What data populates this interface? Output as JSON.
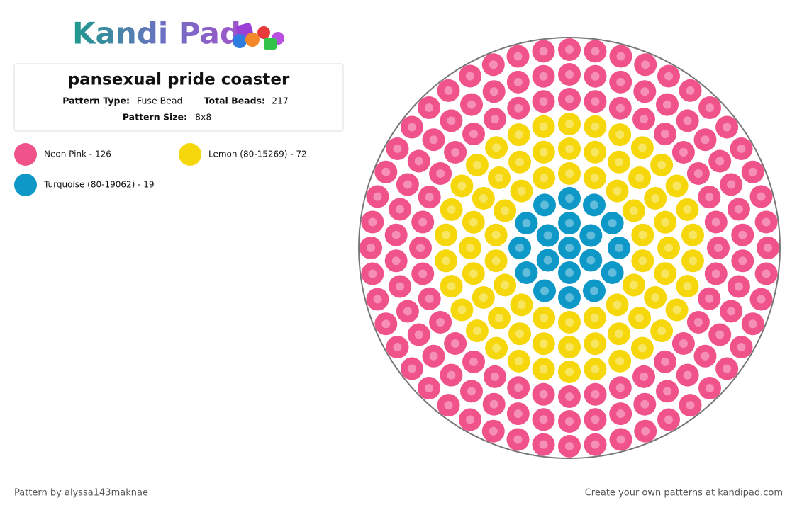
{
  "logo": "Kandi Pad",
  "header": {
    "title": "pansexual pride coaster",
    "fields": [
      {
        "label": "Pattern Type:",
        "value": "Fuse Bead"
      },
      {
        "label": "Total Beads:",
        "value": "217"
      },
      {
        "label": "Pattern Size:",
        "value": "8x8"
      }
    ]
  },
  "legend": [
    {
      "label": "Neon Pink - 126",
      "color": "#f0538a"
    },
    {
      "label": "Lemon (80-15269) - 72",
      "color": "#f5d70c"
    },
    {
      "label": "Turquoise (80-19062) - 19",
      "color": "#0e98c8"
    }
  ],
  "footer": {
    "left": "Pattern by alyssa143maknae",
    "right": "Create your own patterns at kandipad.com"
  }
}
